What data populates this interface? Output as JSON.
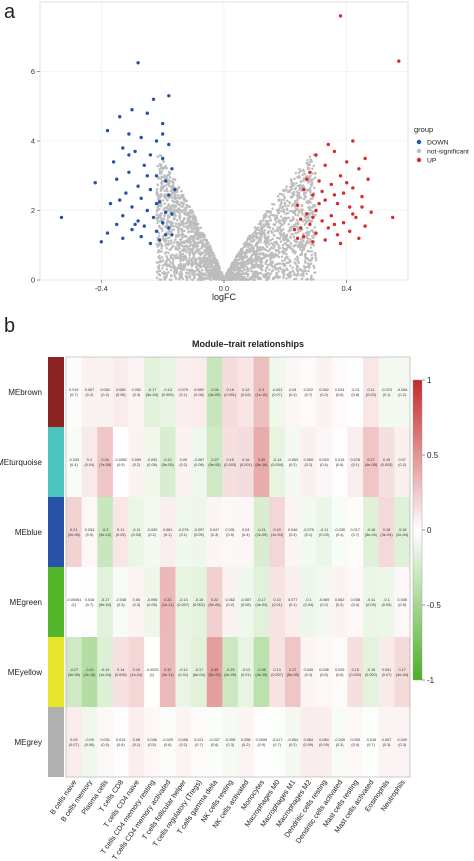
{
  "panels": {
    "a": "a",
    "b": "b"
  },
  "colors": {
    "down": "#2853a6",
    "up": "#d92b2b",
    "ns": "#bdbdbd",
    "heat_high": "#c62828",
    "heat_mid": "#ffffff",
    "heat_low": "#4caf25"
  },
  "chart_data": [
    {
      "type": "scatter",
      "title": "",
      "xlabel": "logFC",
      "ylabel": "",
      "xlim": [
        -0.6,
        0.6
      ],
      "ylim": [
        0,
        8
      ],
      "xticks": [
        "-0.4",
        "0.0",
        "0.4"
      ],
      "yticks": [
        "0",
        "2",
        "4",
        "6"
      ],
      "legend": {
        "title": "group",
        "position": "right",
        "entries": [
          "DOWN",
          "not-significant",
          "UP"
        ]
      },
      "series": [
        {
          "name": "DOWN",
          "approximate": true,
          "points": [
            [
              -0.28,
              6.25
            ],
            [
              -0.42,
              2.8
            ],
            [
              -0.53,
              1.8
            ],
            [
              -0.23,
              5.2
            ],
            [
              -0.18,
              5.3
            ],
            [
              -0.3,
              4.9
            ],
            [
              -0.34,
              4.7
            ],
            [
              -0.25,
              4.8
            ],
            [
              -0.2,
              4.5
            ],
            [
              -0.38,
              4.3
            ],
            [
              -0.31,
              4.2
            ],
            [
              -0.27,
              4.1
            ],
            [
              -0.22,
              4.0
            ],
            [
              -0.18,
              3.9
            ],
            [
              -0.33,
              3.8
            ],
            [
              -0.29,
              3.7
            ],
            [
              -0.24,
              3.6
            ],
            [
              -0.2,
              3.5
            ],
            [
              -0.36,
              3.4
            ],
            [
              -0.26,
              3.3
            ],
            [
              -0.17,
              3.2
            ],
            [
              -0.31,
              3.1
            ],
            [
              -0.22,
              3.0
            ],
            [
              -0.35,
              2.9
            ],
            [
              -0.19,
              2.85
            ],
            [
              -0.28,
              2.7
            ],
            [
              -0.24,
              2.6
            ],
            [
              -0.32,
              2.5
            ],
            [
              -0.18,
              2.45
            ],
            [
              -0.27,
              2.35
            ],
            [
              -0.21,
              2.25
            ],
            [
              -0.37,
              2.2
            ],
            [
              -0.3,
              2.1
            ],
            [
              -0.25,
              2.0
            ],
            [
              -0.19,
              1.95
            ],
            [
              -0.33,
              1.85
            ],
            [
              -0.23,
              1.8
            ],
            [
              -0.28,
              1.7
            ],
            [
              -0.2,
              1.65
            ],
            [
              -0.35,
              1.6
            ],
            [
              -0.26,
              1.55
            ],
            [
              -0.18,
              1.5
            ],
            [
              -0.3,
              1.45
            ],
            [
              -0.22,
              1.4
            ],
            [
              -0.38,
              1.35
            ],
            [
              -0.17,
              1.3
            ],
            [
              -0.27,
              1.25
            ],
            [
              -0.33,
              1.2
            ],
            [
              -0.21,
              1.15
            ],
            [
              -0.4,
              1.1
            ],
            [
              -0.24,
              1.05
            ],
            [
              -0.19,
              1.3
            ],
            [
              -0.29,
              1.6
            ],
            [
              -0.34,
              2.3
            ],
            [
              -0.16,
              2.6
            ],
            [
              -0.25,
              3.0
            ],
            [
              -0.31,
              3.6
            ],
            [
              -0.2,
              4.2
            ],
            [
              -0.17,
              1.9
            ],
            [
              -0.22,
              2.2
            ]
          ]
        },
        {
          "name": "not-significant",
          "approximate": true,
          "spread": {
            "x_min": -0.22,
            "x_max": 0.3,
            "y_max": 3.8
          }
        },
        {
          "name": "UP",
          "approximate": true,
          "points": [
            [
              0.38,
              7.6
            ],
            [
              0.57,
              6.3
            ],
            [
              0.55,
              1.8
            ],
            [
              0.42,
              4.0
            ],
            [
              0.36,
              3.7
            ],
            [
              0.3,
              3.6
            ],
            [
              0.46,
              3.5
            ],
            [
              0.4,
              3.4
            ],
            [
              0.33,
              3.3
            ],
            [
              0.44,
              3.2
            ],
            [
              0.28,
              3.1
            ],
            [
              0.38,
              3.0
            ],
            [
              0.47,
              2.9
            ],
            [
              0.31,
              2.85
            ],
            [
              0.35,
              2.75
            ],
            [
              0.42,
              2.65
            ],
            [
              0.26,
              2.6
            ],
            [
              0.39,
              2.5
            ],
            [
              0.29,
              2.45
            ],
            [
              0.45,
              2.4
            ],
            [
              0.33,
              2.3
            ],
            [
              0.37,
              2.2
            ],
            [
              0.24,
              2.15
            ],
            [
              0.41,
              2.1
            ],
            [
              0.3,
              2.0
            ],
            [
              0.48,
              1.95
            ],
            [
              0.27,
              1.9
            ],
            [
              0.35,
              1.85
            ],
            [
              0.43,
              1.8
            ],
            [
              0.25,
              1.75
            ],
            [
              0.32,
              1.7
            ],
            [
              0.39,
              1.65
            ],
            [
              0.28,
              1.6
            ],
            [
              0.46,
              1.55
            ],
            [
              0.34,
              1.5
            ],
            [
              0.23,
              1.45
            ],
            [
              0.41,
              1.4
            ],
            [
              0.3,
              1.35
            ],
            [
              0.37,
              1.3
            ],
            [
              0.26,
              1.25
            ],
            [
              0.44,
              1.2
            ],
            [
              0.33,
              1.15
            ],
            [
              0.29,
              1.1
            ],
            [
              0.38,
              1.05
            ],
            [
              0.24,
              1.2
            ],
            [
              0.36,
              1.6
            ],
            [
              0.31,
              2.2
            ],
            [
              0.4,
              2.8
            ],
            [
              0.27,
              2.9
            ],
            [
              0.34,
              3.9
            ],
            [
              0.45,
              2.1
            ],
            [
              0.25,
              1.5
            ],
            [
              0.32,
              2.55
            ],
            [
              0.42,
              1.9
            ],
            [
              0.29,
              1.8
            ],
            [
              0.36,
              2.45
            ]
          ]
        }
      ]
    },
    {
      "type": "heatmap",
      "title": "Module–trait relationships",
      "rows": [
        "MEbrown",
        "MEturquoise",
        "MEblue",
        "MEgreen",
        "MEyellow",
        "MEgrey"
      ],
      "row_colors": [
        "#8b2323",
        "#4cc4bd",
        "#2752a8",
        "#52b52a",
        "#e6e62e",
        "#b0b0b0"
      ],
      "columns": [
        "B cells naive",
        "B cells memory",
        "Plasma cells",
        "T cells CD8",
        "T cells CD4 naive",
        "T cells CD4 memory resting",
        "T cells CD4 memory activated",
        "T cells follicular helper",
        "T cells regulatory (Tregs)",
        "T cells gamma delta",
        "NK cells resting",
        "NK cells activated",
        "Monocytes",
        "Macrophages M0",
        "Macrophages M1",
        "Macrophages M2",
        "Dendritic cells resting",
        "Dendritic cells activated",
        "Mast cells resting",
        "Mast cells activated",
        "Eosinophils",
        "Neutrophils"
      ],
      "values": [
        [
          0.019,
          0.067,
          0.062,
          0.088,
          0.052,
          -0.17,
          -0.13,
          0.079,
          0.089,
          -0.31,
          0.16,
          0.12,
          0.3,
          -0.091,
          0.04,
          0.022,
          0.062,
          0.024,
          -0.01,
          0.11,
          -0.073,
          -0.064
        ],
        [
          -0.039,
          0.1,
          0.26,
          -0.0052,
          0.059,
          -0.092,
          -0.21,
          0.06,
          -0.087,
          -0.27,
          0.15,
          0.16,
          0.39,
          -0.14,
          -0.063,
          0.069,
          0.043,
          0.015,
          0.078,
          0.27,
          0.15,
          0.07
        ],
        [
          0.21,
          0.033,
          -0.3,
          0.11,
          -0.11,
          -0.059,
          0.081,
          -0.076,
          -0.097,
          0.047,
          0.031,
          0.04,
          -0.21,
          0.19,
          0.046,
          -0.075,
          -0.11,
          -0.039,
          0.017,
          -0.18,
          0.18,
          -0.18
        ],
        [
          -0.00081,
          0.016,
          -0.17,
          -0.048,
          0.05,
          -0.096,
          0.33,
          -0.13,
          -0.15,
          0.22,
          0.062,
          -0.087,
          -0.17,
          0.13,
          0.077,
          -0.1,
          -0.069,
          0.062,
          0.038,
          -0.11,
          -0.1,
          0.035
        ],
        [
          -0.27,
          -0.42,
          -0.19,
          0.14,
          0.19,
          -0.0025,
          0.32,
          -0.12,
          -0.17,
          0.45,
          -0.29,
          -0.13,
          -0.38,
          0.13,
          0.27,
          0.045,
          0.036,
          0.025,
          0.15,
          -0.15,
          0.091,
          0.17
        ],
        [
          0.09,
          -0.09,
          0.031,
          0.014,
          0.08,
          0.036,
          -0.029,
          0.058,
          0.021,
          -0.027,
          -0.055,
          0.058,
          0.0059,
          -0.017,
          -0.064,
          0.084,
          0.084,
          -0.049,
          0.039,
          -0.016,
          0.057,
          0.049
        ]
      ],
      "pvalues": [
        [
          "(0.7)",
          "(0.2)",
          "(0.2)",
          "(0.08)",
          "(0.3)",
          "(5e-04)",
          "(0.009)",
          "(0.1)",
          "(0.08)",
          "(4e-05)",
          "(0.001)",
          "(0.02)",
          "(1e-10)",
          "(0.07)",
          "(0.4)",
          "(0.7)",
          "(0.2)",
          "(0.6)",
          "(0.8)",
          "(0.03)",
          "(0.1)",
          "(0.2)"
        ],
        [
          "(0.4)",
          "(0.04)",
          "(7e-08)",
          "(0.9)",
          "(0.2)",
          "(0.06)",
          "(5e-05)",
          "(0.2)",
          "(0.08)",
          "(5e-08)",
          "(0.003)",
          "(0.001)",
          "(6e-16)",
          "(0.004)",
          "(0.2)",
          "(0.2)",
          "(0.4)",
          "(0.8)",
          "(0.1)",
          "(4e-08)",
          "(0.003)",
          "(0.2)"
        ],
        [
          "(2e-05)",
          "(0.5)",
          "(3e-10)",
          "(0.03)",
          "(0.03)",
          "(0.2)",
          "(0.1)",
          "(0.1)",
          "(0.05)",
          "(0.3)",
          "(0.5)",
          "(0.4)",
          "(2e-05)",
          "(1e-04)",
          "(0.4)",
          "(0.1)",
          "(0.03)",
          "(0.4)",
          "(0.7)",
          "(3e-04)",
          "(3e-04)",
          "(2e-04)"
        ],
        [
          "(1)",
          "(0.7)",
          "(5e-04)",
          "(0.3)",
          "(0.3)",
          "(0.05)",
          "(1e-11)",
          "(0.007)",
          "(0.002)",
          "(5e-06)",
          "(0.2)",
          "(0.08)",
          "(4e-04)",
          "(0.01)",
          "(0.1)",
          "(0.04)",
          "(0.2)",
          "(0.2)",
          "(0.4)",
          "(0.03)",
          "(0.05)",
          "(0.5)"
        ],
        [
          "(3e-08)",
          "(2e-18)",
          "(1e-04)",
          "(0.005)",
          "(1e-04)",
          "(1)",
          "(3e-11)",
          "(0.01)",
          "(6e-04)",
          "(5e-23)",
          "(2e-09)",
          "(0.01)",
          "(4e-15)",
          "(0.007)",
          "(5e-08)",
          "(0.4)",
          "(0.5)",
          "(0.6)",
          "(0.002)",
          "(0.002)",
          "(0.07)",
          "(4e-04)"
        ],
        [
          "(0.07)",
          "(0.06)",
          "(0.5)",
          "(0.8)",
          "(0.1)",
          "(0.5)",
          "(0.6)",
          "(0.2)",
          "(0.7)",
          "(0.6)",
          "(0.3)",
          "(0.2)",
          "(0.9)",
          "(0.7)",
          "(0.2)",
          "(0.09)",
          "(0.09)",
          "(0.3)",
          "(0.4)",
          "(0.7)",
          "(0.3)",
          "(0.3)"
        ]
      ],
      "colorbar": {
        "range": [
          -1,
          1
        ],
        "ticks": [
          "1",
          "0.5",
          "0",
          "-0.5",
          "-1"
        ],
        "position": "right"
      }
    }
  ]
}
